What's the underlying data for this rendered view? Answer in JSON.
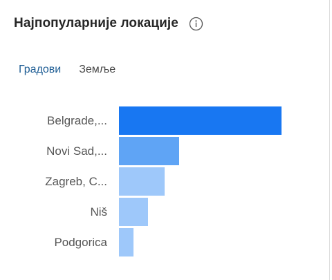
{
  "card": {
    "title": "Најпопуларније локације",
    "info_icon": "info-circle-icon"
  },
  "tabs": [
    {
      "label": "Градови",
      "active": true
    },
    {
      "label": "Земље",
      "active": false
    }
  ],
  "chart_data": {
    "type": "bar",
    "orientation": "horizontal",
    "categories": [
      "Belgrade,...",
      "Novi Sad,...",
      "Zagreb, C...",
      "Niš",
      "Podgorica"
    ],
    "values": [
      100,
      37,
      28,
      18,
      9
    ],
    "colors": [
      "#1877f2",
      "#5fa4f5",
      "#9ec8fa",
      "#9ec8fa",
      "#9ec8fa"
    ],
    "xlim": [
      0,
      100
    ],
    "grid": false,
    "legend": "none"
  }
}
